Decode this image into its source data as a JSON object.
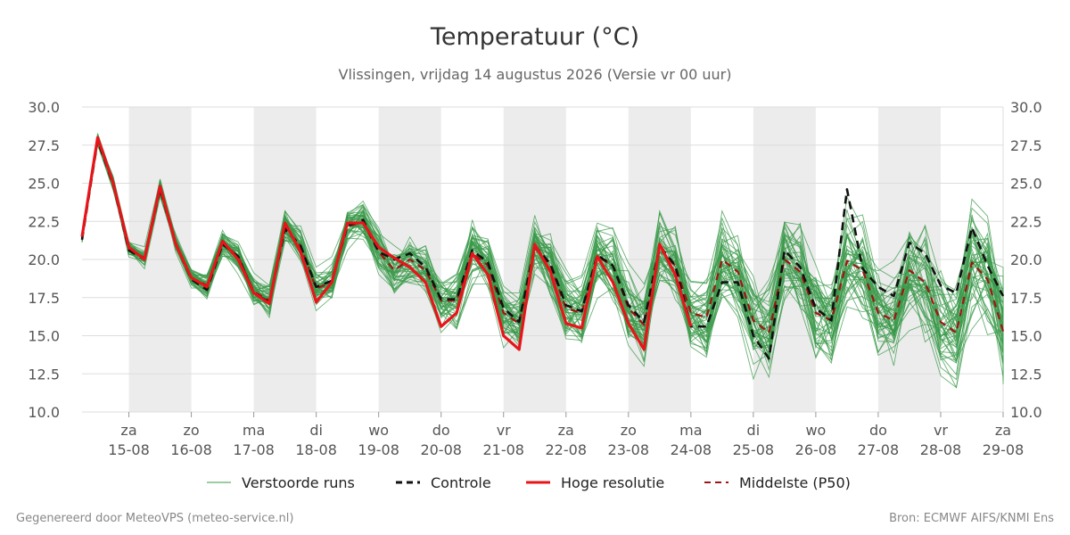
{
  "chart_data": {
    "type": "line",
    "title": "Temperatuur (°C)",
    "subtitle": "Vlissingen, vrijdag 14 augustus 2026 (Versie vr 00 uur)",
    "ylim": [
      10,
      30
    ],
    "yticks": [
      "10.0",
      "12.5",
      "15.0",
      "17.5",
      "20.0",
      "22.5",
      "25.0",
      "27.5",
      "30.0"
    ],
    "grid": true,
    "x_start": "2026-08-14 06:00",
    "x_end": "2026-08-29 00:00",
    "x_step_hours": 6,
    "shaded_days": [
      "2026-08-15",
      "2026-08-17",
      "2026-08-19",
      "2026-08-21",
      "2026-08-23",
      "2026-08-25",
      "2026-08-27"
    ],
    "x_ticks": [
      {
        "day": "za",
        "date": "15-08"
      },
      {
        "day": "zo",
        "date": "16-08"
      },
      {
        "day": "ma",
        "date": "17-08"
      },
      {
        "day": "di",
        "date": "18-08"
      },
      {
        "day": "wo",
        "date": "19-08"
      },
      {
        "day": "do",
        "date": "20-08"
      },
      {
        "day": "vr",
        "date": "21-08"
      },
      {
        "day": "za",
        "date": "22-08"
      },
      {
        "day": "zo",
        "date": "23-08"
      },
      {
        "day": "ma",
        "date": "24-08"
      },
      {
        "day": "di",
        "date": "25-08"
      },
      {
        "day": "wo",
        "date": "26-08"
      },
      {
        "day": "do",
        "date": "27-08"
      },
      {
        "day": "vr",
        "date": "28-08"
      },
      {
        "day": "za",
        "date": "29-08"
      }
    ],
    "legend": {
      "position": "bottom",
      "entries": [
        {
          "label": "Verstoorde runs",
          "color": "#3a9a4a",
          "style": "thin"
        },
        {
          "label": "Controle",
          "color": "#111111",
          "style": "dashed"
        },
        {
          "label": "Hoge resolutie",
          "color": "#e8141a",
          "style": "solid"
        },
        {
          "label": "Middelste (P50)",
          "color": "#a01414",
          "style": "dashed"
        }
      ]
    },
    "ensemble_members": 50,
    "series": [
      {
        "name": "Hoge resolutie",
        "color": "#e8141a",
        "values": [
          21.5,
          28.0,
          25.0,
          20.8,
          20.0,
          24.8,
          21.0,
          18.8,
          18.2,
          21.2,
          20.0,
          17.8,
          17.1,
          22.4,
          20.5,
          17.2,
          18.5,
          22.4,
          22.4,
          20.8,
          20.1,
          19.5,
          18.5,
          15.6,
          16.5,
          20.4,
          19.0,
          15.0,
          14.1,
          21.0,
          19.2,
          15.8,
          15.5,
          20.2,
          18.5,
          15.8,
          14.1,
          21.0,
          19.0,
          15.6
        ]
      },
      {
        "name": "Controle",
        "color": "#111111",
        "values": [
          21.3,
          27.8,
          24.9,
          20.6,
          20.0,
          24.6,
          21.0,
          18.7,
          18.0,
          21.0,
          20.2,
          17.8,
          17.2,
          22.0,
          20.9,
          18.2,
          18.6,
          22.2,
          22.6,
          20.5,
          20.0,
          20.4,
          19.5,
          17.4,
          17.4,
          20.6,
          19.8,
          16.8,
          15.9,
          20.9,
          19.7,
          17.0,
          16.6,
          20.3,
          19.6,
          17.0,
          15.9,
          20.9,
          19.6,
          15.6,
          15.6,
          18.5,
          18.5,
          15.0,
          13.5,
          20.6,
          19.5,
          16.8,
          16.0,
          24.6,
          19.4,
          18.2,
          17.6,
          21.1,
          20.4,
          18.3,
          17.8,
          22.1,
          19.6,
          17.6
        ]
      },
      {
        "name": "Middelste (P50)",
        "color": "#a01414",
        "values": [
          21.4,
          27.9,
          25.0,
          20.7,
          20.1,
          24.7,
          21.1,
          18.8,
          18.3,
          21.1,
          20.2,
          17.9,
          17.3,
          22.1,
          20.9,
          18.1,
          18.5,
          22.2,
          22.4,
          20.5,
          19.3,
          20.0,
          19.3,
          17.3,
          17.3,
          20.4,
          19.6,
          16.5,
          15.8,
          20.8,
          19.6,
          16.8,
          16.5,
          20.2,
          19.6,
          16.8,
          15.7,
          20.7,
          19.6,
          16.5,
          16.2,
          20.0,
          19.2,
          16.0,
          15.2,
          20.0,
          19.2,
          16.5,
          16.0,
          19.9,
          19.3,
          16.5,
          16.0,
          19.3,
          18.5,
          15.9,
          15.2,
          19.8,
          18.7,
          15.3
        ]
      }
    ]
  },
  "footer": {
    "left": "Gegenereerd door MeteoVPS (meteo-service.nl)",
    "right": "Bron: ECMWF AIFS/KNMI Ens"
  },
  "colors": {
    "ensemble": "#3a9a4a",
    "shade": "#ececec",
    "grid": "#dddddd"
  }
}
